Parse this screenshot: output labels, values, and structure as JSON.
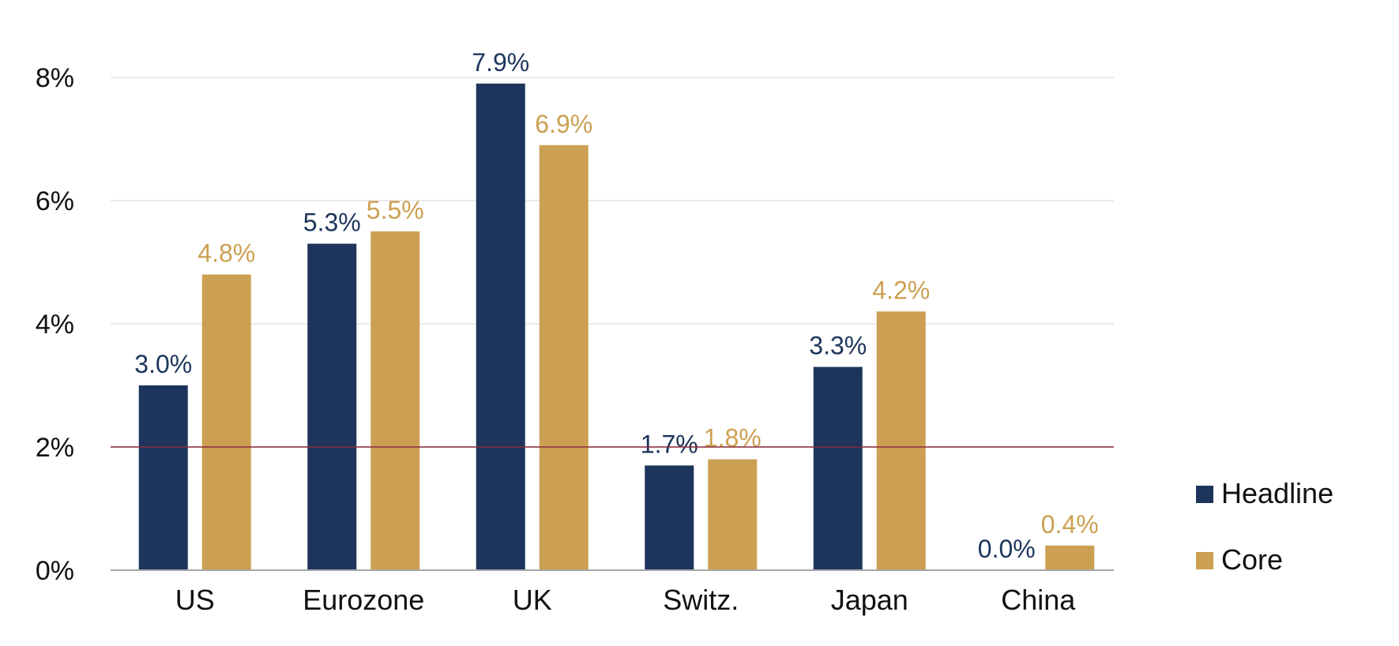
{
  "chart_data": {
    "type": "bar",
    "categories": [
      "US",
      "Eurozone",
      "UK",
      "Switz.",
      "Japan",
      "China"
    ],
    "series": [
      {
        "name": "Headline",
        "color": "#1d355c",
        "values": [
          3.0,
          5.3,
          7.9,
          1.7,
          3.3,
          0.0
        ]
      },
      {
        "name": "Core",
        "color": "#cca052",
        "values": [
          4.8,
          5.5,
          6.9,
          1.8,
          4.2,
          0.4
        ]
      }
    ],
    "data_labels": {
      "Headline": [
        "3.0%",
        "5.3%",
        "7.9%",
        "1.7%",
        "3.3%",
        "0.0%"
      ],
      "Core": [
        "4.8%",
        "5.5%",
        "6.9%",
        "1.8%",
        "4.2%",
        "0.4%"
      ]
    },
    "y_ticks": [
      0,
      2,
      4,
      6,
      8
    ],
    "y_tick_labels": [
      "0%",
      "2%",
      "4%",
      "6%",
      "8%"
    ],
    "ylim": [
      0,
      8
    ],
    "reference_line": {
      "value": 2,
      "color": "#8b2a3a"
    },
    "grid": true,
    "grid_color": "#e3e3e3",
    "axis_color": "#a6a6a6",
    "legend_position": "right"
  }
}
